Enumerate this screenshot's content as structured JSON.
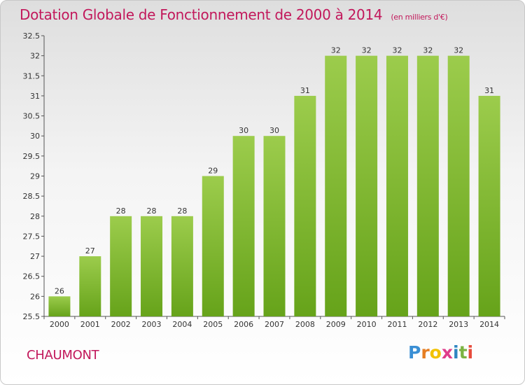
{
  "title": "Dotation Globale de Fonctionnement de 2000 à 2014",
  "subtitle": "(en milliers d'€)",
  "commune": "CHAUMONT",
  "logo": {
    "p": "P",
    "r": "r",
    "o": "o",
    "x": "x",
    "i1": "i",
    "t": "t",
    "i2": "i"
  },
  "colors": {
    "bar_light": "#9ccc4c",
    "bar_dark": "#66a31a",
    "title": "#c2185b"
  },
  "chart_data": {
    "type": "bar",
    "categories": [
      "2000",
      "2001",
      "2002",
      "2003",
      "2004",
      "2005",
      "2006",
      "2007",
      "2008",
      "2009",
      "2010",
      "2011",
      "2012",
      "2013",
      "2014"
    ],
    "values": [
      26,
      27,
      28,
      28,
      28,
      29,
      30,
      30,
      31,
      32,
      32,
      32,
      32,
      32,
      31
    ],
    "yticks": [
      "25.5",
      "26",
      "26.5",
      "27",
      "27.5",
      "28",
      "28.5",
      "29",
      "29.5",
      "30",
      "30.5",
      "31",
      "31.5",
      "32",
      "32.5"
    ],
    "ylim": [
      25.5,
      32.5
    ],
    "title": "Dotation Globale de Fonctionnement de 2000 à 2014",
    "xlabel": "",
    "ylabel": "",
    "grid": false
  }
}
